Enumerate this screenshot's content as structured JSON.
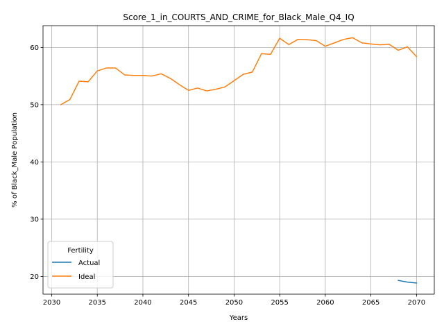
{
  "chart_data": {
    "type": "line",
    "title": "Score_1_in_COURTS_AND_CRIME_for_Black_Male_Q4_IQ",
    "xlabel": "Years",
    "ylabel": "% of Black_Male Population",
    "xlim": [
      2029.05,
      2071.95
    ],
    "ylim": [
      16.9,
      63.8
    ],
    "xticks": [
      2030,
      2035,
      2040,
      2045,
      2050,
      2055,
      2060,
      2065,
      2070
    ],
    "yticks": [
      20,
      30,
      40,
      50,
      60
    ],
    "grid": true,
    "legend": {
      "title": "Fertility",
      "position": "lower-left"
    },
    "series": [
      {
        "name": "Actual",
        "color": "#1f77b4",
        "x": [
          2068,
          2069,
          2070
        ],
        "y": [
          19.3,
          19.0,
          18.85
        ]
      },
      {
        "name": "Ideal",
        "color": "#ff7f0e",
        "x": [
          2031,
          2032,
          2033,
          2034,
          2035,
          2036,
          2037,
          2038,
          2039,
          2040,
          2041,
          2042,
          2043,
          2044,
          2045,
          2046,
          2047,
          2048,
          2049,
          2050,
          2051,
          2052,
          2053,
          2054,
          2055,
          2056,
          2057,
          2058,
          2059,
          2060,
          2061,
          2062,
          2063,
          2064,
          2065,
          2066,
          2067,
          2068,
          2069,
          2070
        ],
        "y": [
          50.0,
          50.9,
          54.1,
          54.0,
          55.9,
          56.4,
          56.4,
          55.2,
          55.1,
          55.1,
          55.0,
          55.4,
          54.6,
          53.5,
          52.5,
          52.9,
          52.4,
          52.7,
          53.1,
          54.2,
          55.3,
          55.7,
          58.9,
          58.8,
          61.6,
          60.5,
          61.4,
          61.35,
          61.2,
          60.2,
          60.8,
          61.4,
          61.7,
          60.8,
          60.6,
          60.45,
          60.55,
          59.5,
          60.1,
          58.4
        ]
      }
    ]
  }
}
